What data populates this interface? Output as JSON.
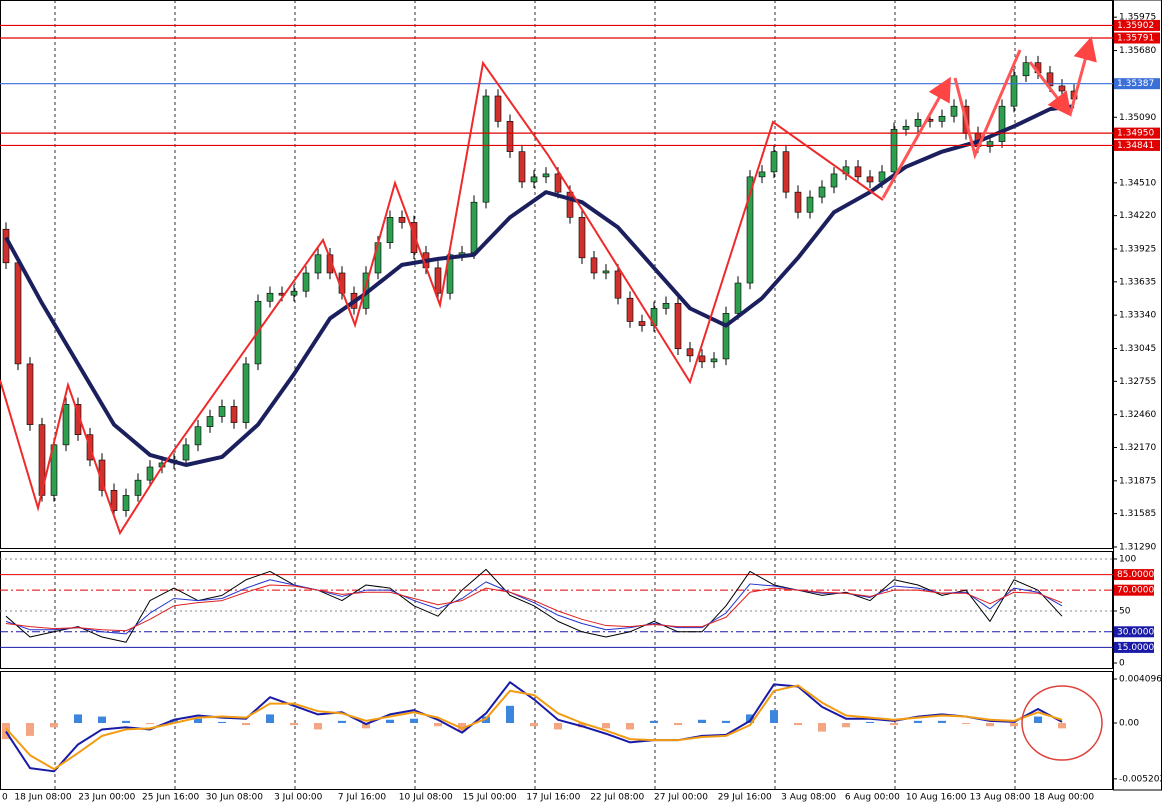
{
  "chart_data": [
    {
      "type": "candlestick",
      "ylim": [
        1.31281,
        1.36127
      ],
      "yticks": [
        {
          "value": 1.35975,
          "label": "1.35975"
        },
        {
          "value": 1.3568,
          "label": "1.35680"
        },
        {
          "value": 1.3509,
          "label": "1.35090"
        },
        {
          "value": 1.3451,
          "label": "1.34510"
        },
        {
          "value": 1.3422,
          "label": "1.34220"
        },
        {
          "value": 1.33925,
          "label": "1.33925"
        },
        {
          "value": 1.33635,
          "label": "1.33635"
        },
        {
          "value": 1.3334,
          "label": "1.33340"
        },
        {
          "value": 1.33045,
          "label": "1.33045"
        },
        {
          "value": 1.32755,
          "label": "1.32755"
        },
        {
          "value": 1.3246,
          "label": "1.32460"
        },
        {
          "value": 1.3217,
          "label": "1.32170"
        },
        {
          "value": 1.31875,
          "label": "1.31875"
        },
        {
          "value": 1.31585,
          "label": "1.31585"
        },
        {
          "value": 1.3129,
          "label": "1.31290"
        }
      ],
      "x_labels": [
        "0",
        "18 Jun 08:00",
        "23 Jun 00:00",
        "25 Jun 16:00",
        "30 Jun 08:00",
        "3 Jul 00:00",
        "7 Jul 16:00",
        "10 Jul 08:00",
        "15 Jul 00:00",
        "17 Jul 16:00",
        "22 Jul 08:00",
        "27 Jul 00:00",
        "29 Jul 16:00",
        "3 Aug 08:00",
        "6 Aug 00:00",
        "10 Aug 16:00",
        "13 Aug 08:00",
        "18 Aug 00:00"
      ],
      "bull_color": "#2f9e4f",
      "bear_color": "#d0312d",
      "open": [
        1.341,
        1.33803,
        1.32909,
        1.32372,
        1.31746,
        1.32193,
        1.32551,
        1.32283,
        1.32059,
        1.31791,
        1.31612,
        1.31746,
        1.31881,
        1.31997,
        1.32033,
        1.32059,
        1.32193,
        1.32354,
        1.32444,
        1.32533,
        1.3239,
        1.32909,
        1.33463,
        1.33534,
        1.33517,
        1.33552,
        1.33713,
        1.33874,
        1.33713,
        1.33534,
        1.334,
        1.33713,
        1.33981,
        1.34205,
        1.3416,
        1.33892,
        1.33758,
        1.33534,
        1.33874,
        1.33892,
        1.34339,
        1.35278,
        1.35054,
        1.34786,
        1.34518,
        1.34563,
        1.34589,
        1.34428,
        1.34205,
        1.33847,
        1.33713,
        1.33731,
        1.3349,
        1.33284,
        1.33248,
        1.334,
        1.33445,
        1.33043,
        1.3298,
        1.32927,
        1.32953,
        1.33356,
        1.33624,
        1.34563,
        1.34607,
        1.34786,
        1.34428,
        1.3425,
        1.34384,
        1.34473,
        1.34589,
        1.34652,
        1.34563,
        1.34518,
        1.34607,
        1.34983,
        1.3501,
        1.35072,
        1.35054,
        1.35099,
        1.35188,
        1.34947,
        1.34831,
        1.34875,
        1.35188,
        1.35457,
        1.35573,
        1.35483,
        1.35367,
        1.35322
      ],
      "high": [
        1.3416,
        1.33863,
        1.32969,
        1.32432,
        1.32253,
        1.32611,
        1.32611,
        1.32343,
        1.32119,
        1.31851,
        1.31806,
        1.31941,
        1.32057,
        1.32093,
        1.32119,
        1.32253,
        1.32414,
        1.32504,
        1.32593,
        1.32593,
        1.32969,
        1.33523,
        1.33594,
        1.33594,
        1.33612,
        1.33773,
        1.33934,
        1.33934,
        1.33773,
        1.33594,
        1.33773,
        1.34041,
        1.34265,
        1.34265,
        1.3422,
        1.33952,
        1.33818,
        1.33934,
        1.33952,
        1.34399,
        1.35338,
        1.35338,
        1.35114,
        1.34846,
        1.34623,
        1.34649,
        1.34649,
        1.34488,
        1.34265,
        1.33907,
        1.33791,
        1.33791,
        1.3355,
        1.33344,
        1.3346,
        1.33505,
        1.33505,
        1.33103,
        1.3304,
        1.33013,
        1.33416,
        1.33684,
        1.34623,
        1.34667,
        1.34846,
        1.34846,
        1.34488,
        1.34444,
        1.34533,
        1.34649,
        1.34712,
        1.34712,
        1.34623,
        1.34667,
        1.35043,
        1.3507,
        1.35132,
        1.35132,
        1.35159,
        1.35248,
        1.35248,
        1.35007,
        1.34935,
        1.35248,
        1.35517,
        1.35633,
        1.35633,
        1.35543,
        1.35427,
        1.35382
      ],
      "low": [
        1.33748,
        1.32854,
        1.32317,
        1.31691,
        1.31691,
        1.32138,
        1.32228,
        1.32004,
        1.31736,
        1.31557,
        1.31557,
        1.31691,
        1.31826,
        1.31942,
        1.31978,
        1.32004,
        1.32138,
        1.32299,
        1.32389,
        1.32335,
        1.32335,
        1.32854,
        1.33408,
        1.33462,
        1.33462,
        1.33497,
        1.33658,
        1.33658,
        1.33479,
        1.33345,
        1.33345,
        1.33658,
        1.33926,
        1.34105,
        1.33837,
        1.33703,
        1.33479,
        1.33479,
        1.33819,
        1.33837,
        1.34284,
        1.34999,
        1.34731,
        1.34463,
        1.34463,
        1.34508,
        1.34373,
        1.3415,
        1.33792,
        1.33658,
        1.33658,
        1.33435,
        1.33229,
        1.33193,
        1.33193,
        1.33345,
        1.32988,
        1.32925,
        1.32872,
        1.32872,
        1.32898,
        1.33301,
        1.33569,
        1.34508,
        1.34552,
        1.34373,
        1.34195,
        1.34195,
        1.34329,
        1.34418,
        1.34534,
        1.34508,
        1.34463,
        1.34463,
        1.34552,
        1.34928,
        1.34955,
        1.34999,
        1.34999,
        1.35044,
        1.34892,
        1.34776,
        1.34776,
        1.3482,
        1.35133,
        1.35402,
        1.35428,
        1.35312,
        1.35267,
        1.35196
      ],
      "close": [
        1.33803,
        1.32909,
        1.32372,
        1.31746,
        1.32193,
        1.32551,
        1.32283,
        1.32059,
        1.31791,
        1.31612,
        1.31746,
        1.31881,
        1.31997,
        1.32033,
        1.32059,
        1.32193,
        1.32354,
        1.32444,
        1.32533,
        1.3239,
        1.32909,
        1.33463,
        1.33534,
        1.33517,
        1.33552,
        1.33713,
        1.33874,
        1.33713,
        1.33534,
        1.334,
        1.33713,
        1.33981,
        1.34205,
        1.3416,
        1.33892,
        1.33758,
        1.33534,
        1.33874,
        1.33892,
        1.34339,
        1.35278,
        1.35054,
        1.34786,
        1.34518,
        1.34563,
        1.34589,
        1.34428,
        1.34205,
        1.33847,
        1.33713,
        1.33731,
        1.3349,
        1.33284,
        1.33248,
        1.334,
        1.33445,
        1.33043,
        1.3298,
        1.32927,
        1.32953,
        1.33356,
        1.33624,
        1.34563,
        1.34607,
        1.34786,
        1.34428,
        1.3425,
        1.34384,
        1.34473,
        1.34589,
        1.34652,
        1.34563,
        1.34518,
        1.34607,
        1.34983,
        1.3501,
        1.35072,
        1.35054,
        1.35099,
        1.35188,
        1.34947,
        1.34831,
        1.34875,
        1.35188,
        1.35457,
        1.35573,
        1.35483,
        1.35367,
        1.35322,
        1.35251
      ],
      "moving_average": {
        "color": "#1b1f5e",
        "x": [
          0,
          3,
          6,
          9,
          12,
          15,
          18,
          21,
          24,
          27,
          30,
          33,
          36,
          39,
          42,
          45,
          48,
          51,
          54,
          57,
          60,
          63,
          66,
          69,
          72,
          75,
          78,
          81,
          84,
          87,
          89
        ],
        "values": [
          1.34026,
          1.33445,
          1.32909,
          1.32372,
          1.32104,
          1.32015,
          1.32086,
          1.32372,
          1.32819,
          1.33311,
          1.33534,
          1.33785,
          1.33838,
          1.33874,
          1.34205,
          1.34428,
          1.34339,
          1.34116,
          1.33758,
          1.334,
          1.33248,
          1.3349,
          1.33847,
          1.3425,
          1.34428,
          1.34652,
          1.34786,
          1.34875,
          1.3501,
          1.35162,
          1.35188
        ]
      },
      "levels": [
        {
          "value": 1.35902,
          "color": "#e00000"
        },
        {
          "value": 1.35791,
          "color": "#e00000"
        },
        {
          "value": 1.35387,
          "color": "#3a6fd8"
        },
        {
          "value": 1.3495,
          "label": "1.34950",
          "color": "#e00000"
        },
        {
          "value": 1.34841,
          "color": "#e00000"
        }
      ]
    },
    {
      "type": "line",
      "ylim": [
        -4.8,
        106.7
      ],
      "yticks": [
        100,
        50,
        0
      ],
      "levels": [
        {
          "value": 85,
          "label": "85.0000",
          "color": "#e00000",
          "style": "solid"
        },
        {
          "value": 70,
          "label": "70.0000",
          "color": "#e00000",
          "style": "dashdot"
        },
        {
          "value": 30,
          "label": "30.0000",
          "color": "#1a1aa8",
          "style": "dashdot"
        },
        {
          "value": 15,
          "label": "15.0000",
          "color": "#1a1aa8",
          "style": "solid"
        }
      ],
      "series": [
        {
          "color": "#000000",
          "values": [
            45,
            25,
            30,
            35,
            25,
            20,
            60,
            72,
            60,
            65,
            80,
            88,
            75,
            70,
            60,
            75,
            72,
            55,
            45,
            70,
            90,
            65,
            55,
            40,
            30,
            25,
            30,
            40,
            30,
            30,
            55,
            88,
            75,
            70,
            65,
            68,
            60,
            80,
            75,
            65,
            70,
            40,
            80,
            70,
            45
          ]
        },
        {
          "color": "#2233cc",
          "values": [
            40,
            32,
            32,
            34,
            30,
            28,
            48,
            62,
            60,
            62,
            72,
            80,
            75,
            70,
            64,
            70,
            70,
            60,
            52,
            62,
            78,
            68,
            58,
            46,
            38,
            32,
            34,
            38,
            34,
            34,
            48,
            76,
            74,
            70,
            67,
            67,
            63,
            74,
            72,
            67,
            68,
            52,
            72,
            68,
            55
          ]
        },
        {
          "color": "#e02020",
          "values": [
            38,
            35,
            33,
            34,
            32,
            31,
            42,
            55,
            58,
            60,
            68,
            75,
            74,
            70,
            66,
            68,
            68,
            62,
            56,
            60,
            72,
            68,
            60,
            50,
            42,
            36,
            35,
            37,
            35,
            35,
            44,
            68,
            72,
            70,
            68,
            67,
            64,
            70,
            70,
            67,
            67,
            57,
            68,
            67,
            58
          ]
        }
      ]
    },
    {
      "type": "macd",
      "ylim": [
        -0.00624,
        0.00475
      ],
      "yticks": [
        0.0040965,
        {
          "value": 0,
          "label": "0.00"
        },
        -0.005202
      ],
      "histogram": {
        "positive_color": "#3d86e0",
        "negative_color": "#f4a582",
        "values": [
          -0.0015,
          -0.0012,
          -0.0004,
          0.0008,
          0.0006,
          0.0002,
          -0.0001,
          0.0003,
          0.0004,
          0.0001,
          -0.0002,
          0.0008,
          -0.0002,
          -0.0006,
          0.0002,
          -0.0005,
          0.0003,
          0.0004,
          -0.0003,
          -0.0008,
          0.0006,
          0.0016,
          -0.0003,
          -0.0006,
          -0.0004,
          -0.0005,
          -0.0006,
          0.0002,
          -0.0002,
          0.0003,
          0.0002,
          0.0008,
          0.0012,
          -0.0002,
          -0.0008,
          -0.0004,
          0.0001,
          -0.0002,
          0.0002,
          0.0002,
          -0.0001,
          -0.0003,
          -0.0003,
          0.0006,
          -0.0005
        ]
      },
      "series": [
        {
          "color": "#1a1aa8",
          "values": [
            -0.0008,
            -0.0042,
            -0.0045,
            -0.002,
            -0.0006,
            -0.0004,
            -0.0006,
            0.0003,
            0.0007,
            0.0005,
            0.0004,
            0.0024,
            0.0016,
            0.0008,
            0.001,
            -0.0001,
            0.0008,
            0.0012,
            0.0003,
            -0.0009,
            0.0009,
            0.0038,
            0.0022,
            0.0003,
            -0.0003,
            -0.001,
            -0.0018,
            -0.0016,
            -0.0016,
            -0.0012,
            -0.0011,
            0.0002,
            0.0036,
            0.0034,
            0.0015,
            0.0004,
            0.0004,
            0.0002,
            0.0006,
            0.0008,
            0.0006,
            0.0002,
            0.0001,
            0.0013,
            0.0001
          ]
        },
        {
          "color": "#f39c12",
          "values": [
            -0.0005,
            -0.003,
            -0.0043,
            -0.0028,
            -0.0012,
            -0.0006,
            -0.0005,
            0,
            0.0005,
            0.0006,
            0.0005,
            0.0018,
            0.0018,
            0.0011,
            0.0009,
            0.0002,
            0.0006,
            0.001,
            0.0005,
            -0.0005,
            0.0004,
            0.003,
            0.0026,
            0.0009,
            0,
            -0.0007,
            -0.0015,
            -0.0016,
            -0.0016,
            -0.0013,
            -0.0012,
            -0.0002,
            0.003,
            0.0035,
            0.0019,
            0.0007,
            0.0005,
            0.0003,
            0.0005,
            0.0007,
            0.0006,
            0.0003,
            0.0002,
            0.001,
            0.0003
          ]
        }
      ]
    }
  ]
}
